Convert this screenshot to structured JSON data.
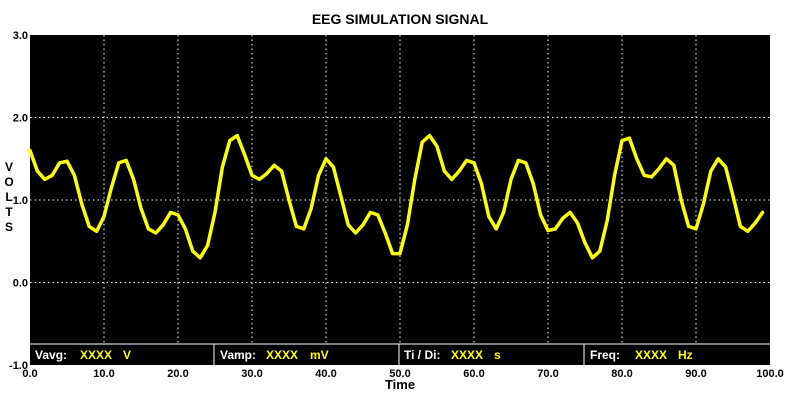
{
  "chart_data": {
    "type": "line",
    "title": "EEG SIMULATION SIGNAL",
    "xlabel": "Time",
    "ylabel": "VOLTS",
    "xlim": [
      0,
      100
    ],
    "ylim": [
      -1,
      3
    ],
    "x_ticks": [
      "0.0",
      "10.0",
      "20.0",
      "30.0",
      "40.0",
      "50.0",
      "60.0",
      "70.0",
      "80.0",
      "90.0",
      "100.0"
    ],
    "y_ticks": [
      "-1.0",
      "0.0",
      "1.0",
      "2.0",
      "3.0"
    ],
    "grid": true,
    "background": "#000000",
    "line_color": "#ffff00",
    "series": [
      {
        "x": [
          0,
          1,
          2,
          3,
          4,
          5,
          6,
          7,
          8,
          9,
          10,
          11,
          12,
          13,
          14,
          15,
          16,
          17,
          18,
          19,
          20,
          21,
          22,
          23,
          24,
          25,
          26,
          27,
          28,
          29,
          30,
          31,
          32,
          33,
          34,
          35,
          36,
          37,
          38,
          39,
          40,
          41,
          42,
          43,
          44,
          45,
          46,
          47,
          48,
          49,
          50,
          51,
          52,
          53,
          54,
          55,
          56,
          57,
          58,
          59,
          60,
          61,
          62,
          63,
          64,
          65,
          66,
          67,
          68,
          69,
          70,
          71,
          72,
          73,
          74,
          75,
          76,
          77,
          78,
          79,
          80,
          81,
          82,
          83,
          84,
          85,
          86,
          87,
          88,
          89,
          90,
          91,
          92,
          93,
          94,
          95,
          96,
          97,
          98,
          99
        ],
        "values": [
          1.6,
          1.35,
          1.25,
          1.3,
          1.45,
          1.47,
          1.3,
          0.95,
          0.68,
          0.62,
          0.8,
          1.15,
          1.45,
          1.48,
          1.25,
          0.9,
          0.65,
          0.6,
          0.7,
          0.85,
          0.82,
          0.65,
          0.38,
          0.3,
          0.45,
          0.85,
          1.4,
          1.72,
          1.78,
          1.55,
          1.3,
          1.25,
          1.32,
          1.42,
          1.35,
          1.0,
          0.68,
          0.65,
          0.9,
          1.3,
          1.5,
          1.4,
          1.05,
          0.7,
          0.6,
          0.7,
          0.85,
          0.82,
          0.6,
          0.35,
          0.35,
          0.7,
          1.25,
          1.7,
          1.78,
          1.65,
          1.35,
          1.25,
          1.35,
          1.48,
          1.45,
          1.2,
          0.8,
          0.65,
          0.85,
          1.25,
          1.48,
          1.45,
          1.2,
          0.82,
          0.63,
          0.65,
          0.78,
          0.85,
          0.72,
          0.48,
          0.3,
          0.38,
          0.75,
          1.3,
          1.72,
          1.75,
          1.5,
          1.3,
          1.28,
          1.38,
          1.5,
          1.42,
          1.0,
          0.68,
          0.65,
          0.95,
          1.35,
          1.5,
          1.4,
          1.05,
          0.68,
          0.62,
          0.72,
          0.85
        ]
      }
    ]
  },
  "status_bar": {
    "vavg_label": "Vavg:",
    "vavg_value": "XXXX",
    "vavg_unit": "V",
    "vamp_label": "Vamp:",
    "vamp_value": "XXXX",
    "vamp_unit": "mV",
    "ti_label": "Ti / Di:",
    "ti_value": "XXXX",
    "ti_unit": "s",
    "freq_label": "Freq:",
    "freq_value": "XXXX",
    "freq_unit": "Hz"
  }
}
